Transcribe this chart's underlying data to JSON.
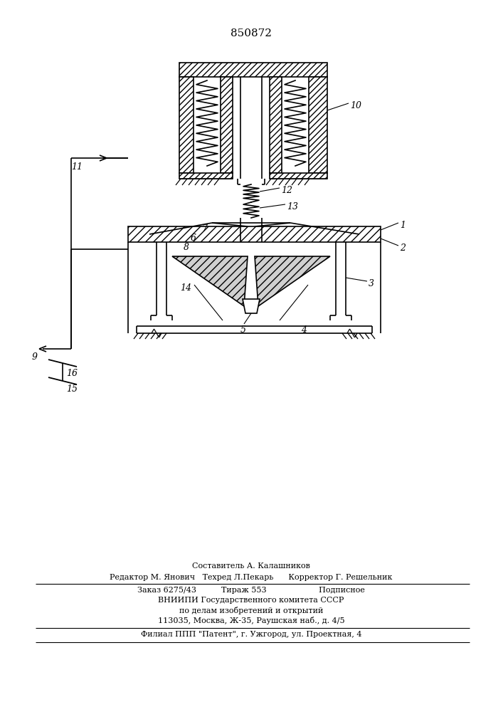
{
  "title": "850872",
  "bg_color": "#ffffff",
  "footer_lines": [
    "Составитель А. Калашников",
    "Редактор М. Янович   Техред Л.Пекарь      Корректор Г. Решельник",
    "Заказ 6275/43          Тираж 553                     Подписное",
    "ВНИИПИ Государственного комитета СССР",
    "по делам изобретений и открытий",
    "113035, Москва, Ж-35, Раушская наб., д. 4/5",
    "Филиал ППП \"Патент\", г. Ужгород, ул. Проектная, 4"
  ]
}
